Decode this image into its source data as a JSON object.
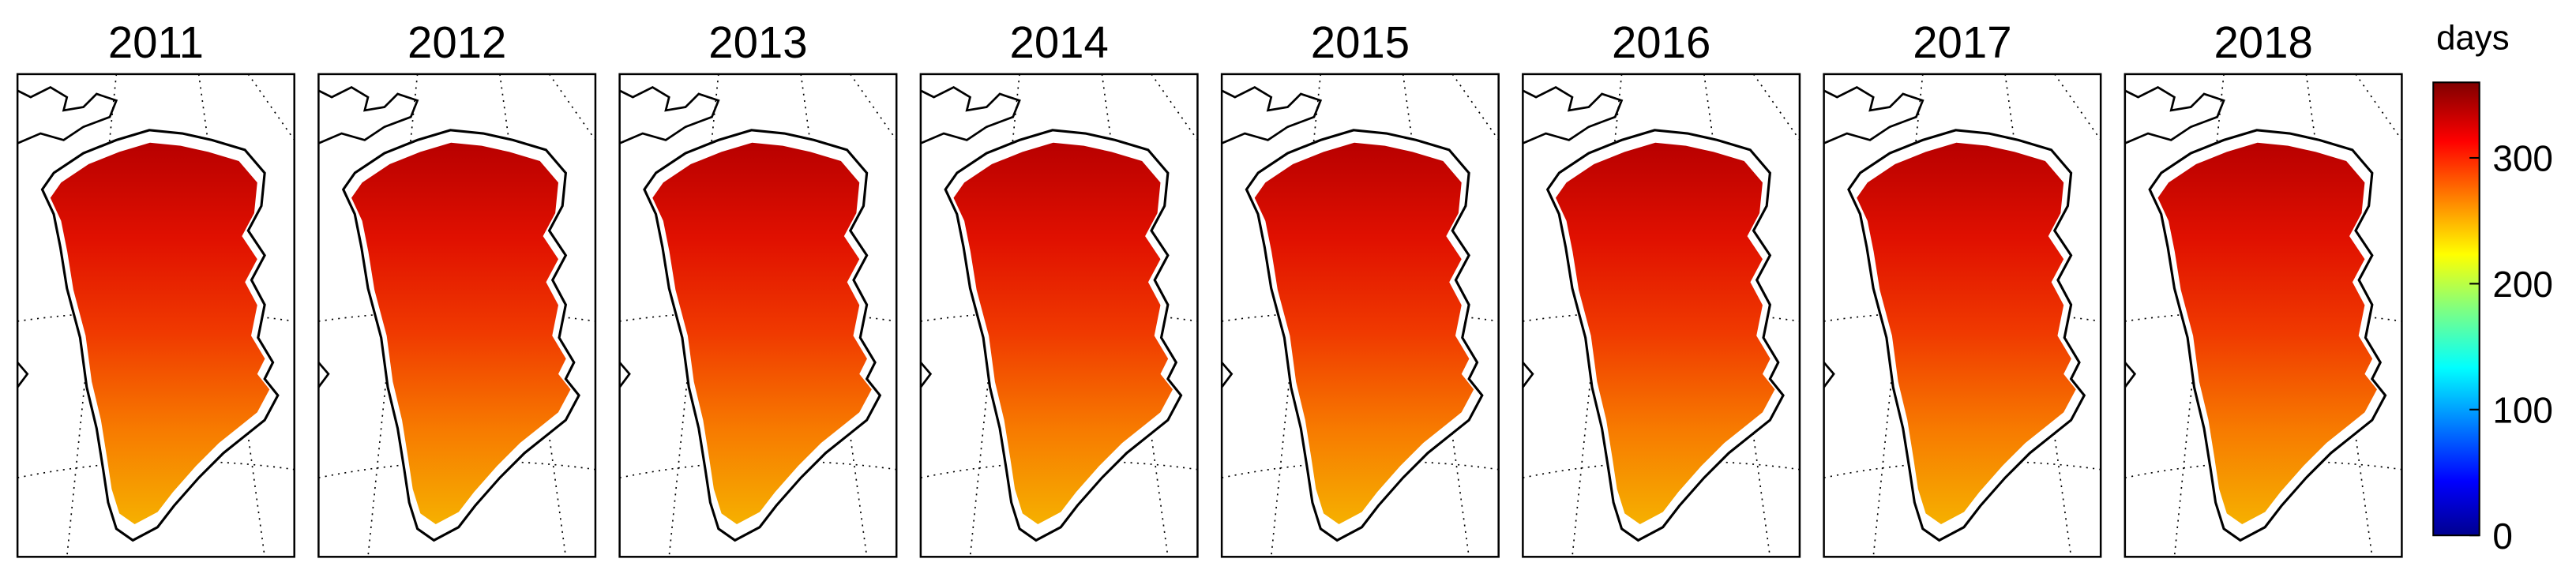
{
  "panels": [
    {
      "title": "2011"
    },
    {
      "title": "2012"
    },
    {
      "title": "2013"
    },
    {
      "title": "2014"
    },
    {
      "title": "2015"
    },
    {
      "title": "2016"
    },
    {
      "title": "2017"
    },
    {
      "title": "2018"
    }
  ],
  "colorbar": {
    "label": "days",
    "lim": [
      0,
      360
    ],
    "ticks": [
      0,
      100,
      200,
      300
    ]
  }
}
